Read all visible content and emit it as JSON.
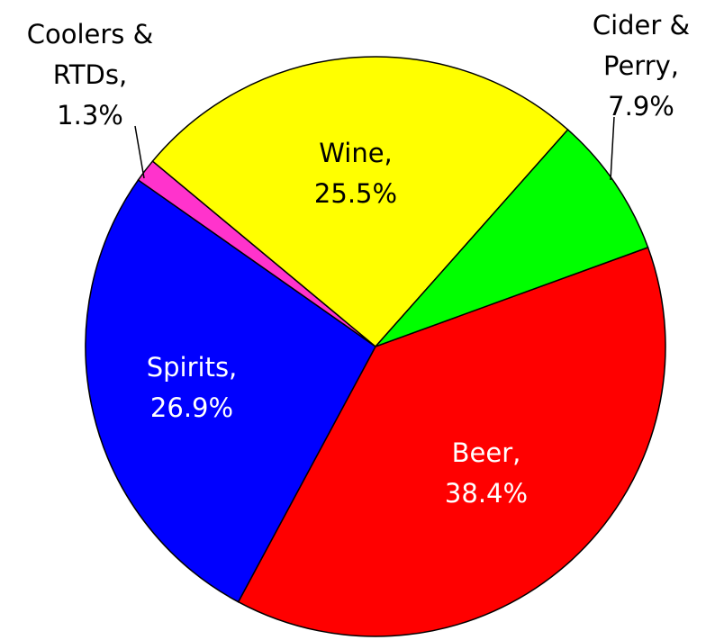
{
  "chart_data": {
    "type": "pie",
    "categories": [
      [
        "Beer,"
      ],
      [
        "Spirits,"
      ],
      [
        "Coolers &",
        "RTDs,"
      ],
      [
        "Wine,"
      ],
      [
        "Cider &",
        "Perry,"
      ]
    ],
    "values": [
      38.4,
      26.9,
      1.3,
      25.5,
      7.9
    ],
    "value_labels": [
      "38.4%",
      "26.9%",
      "1.3%",
      "25.5%",
      "7.9%"
    ],
    "colors": [
      "#ff0000",
      "#0000ff",
      "#ff33cc",
      "#ffff00",
      "#00ff00"
    ]
  }
}
